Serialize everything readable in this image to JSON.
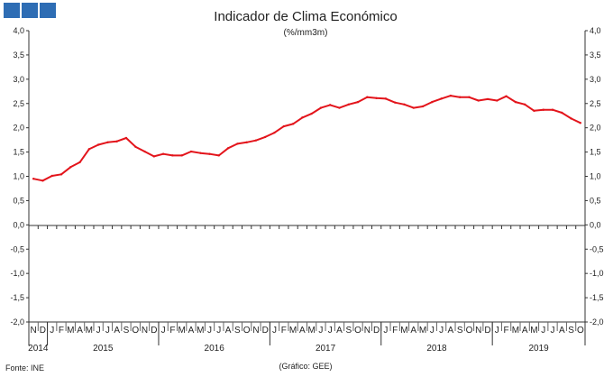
{
  "header": {
    "logo_colors": [
      "#2E6DB4",
      "#2E6DB4",
      "#2E6DB4"
    ]
  },
  "footer": {
    "source": "Fonte: INE",
    "credit": "(Gráfico: GEE)"
  },
  "chart_data": {
    "type": "line",
    "title": "Indicador de Clima Económico",
    "subtitle": "(%/mm3m)",
    "y_ticks": [
      "4,0",
      "3,5",
      "3,0",
      "2,5",
      "2,0",
      "1,5",
      "1,0",
      "0,5",
      "0,0",
      "-0,5",
      "-1,0",
      "-1,5",
      "-2,0"
    ],
    "ylim": [
      -2.0,
      4.0
    ],
    "months": [
      "N",
      "D",
      "J",
      "F",
      "M",
      "A",
      "M",
      "J",
      "J",
      "A",
      "S",
      "O",
      "N",
      "D",
      "J",
      "F",
      "M",
      "A",
      "M",
      "J",
      "J",
      "A",
      "S",
      "O",
      "N",
      "D",
      "J",
      "F",
      "M",
      "A",
      "M",
      "J",
      "J",
      "A",
      "S",
      "O",
      "N",
      "D",
      "J",
      "F",
      "M",
      "A",
      "M",
      "J",
      "J",
      "A",
      "S",
      "O",
      "N",
      "D",
      "J",
      "F",
      "M",
      "A",
      "M",
      "J",
      "J",
      "A",
      "S",
      "O"
    ],
    "years": [
      {
        "label": "2014",
        "start": 0,
        "end": 1
      },
      {
        "label": "2015",
        "start": 2,
        "end": 13
      },
      {
        "label": "2016",
        "start": 14,
        "end": 25
      },
      {
        "label": "2017",
        "start": 26,
        "end": 37
      },
      {
        "label": "2018",
        "start": 38,
        "end": 49
      },
      {
        "label": "2019",
        "start": 50,
        "end": 59
      }
    ],
    "series": [
      {
        "color": "#E3141B",
        "values": [
          0.95,
          0.91,
          1.01,
          1.04,
          1.19,
          1.29,
          1.56,
          1.65,
          1.7,
          1.72,
          1.79,
          1.61,
          1.51,
          1.41,
          1.46,
          1.43,
          1.43,
          1.51,
          1.48,
          1.46,
          1.43,
          1.58,
          1.67,
          1.7,
          1.74,
          1.81,
          1.9,
          2.03,
          2.08,
          2.21,
          2.29,
          2.41,
          2.47,
          2.41,
          2.48,
          2.53,
          2.63,
          2.61,
          2.6,
          2.52,
          2.48,
          2.41,
          2.44,
          2.53,
          2.6,
          2.66,
          2.63,
          2.63,
          2.56,
          2.59,
          2.56,
          2.65,
          2.53,
          2.48,
          2.35,
          2.37,
          2.37,
          2.31,
          2.19,
          2.1
        ]
      }
    ],
    "grid": false,
    "zero_line": true
  }
}
